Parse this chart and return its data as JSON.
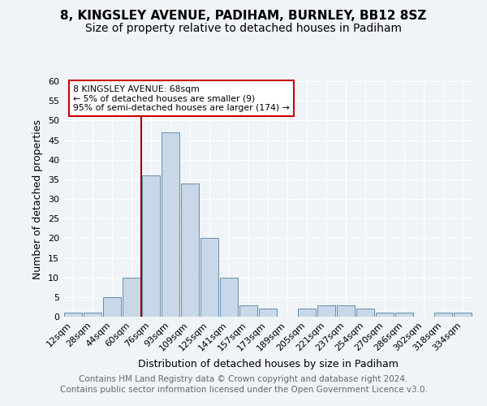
{
  "title": "8, KINGSLEY AVENUE, PADIHAM, BURNLEY, BB12 8SZ",
  "subtitle": "Size of property relative to detached houses in Padiham",
  "xlabel": "Distribution of detached houses by size in Padiham",
  "ylabel": "Number of detached properties",
  "bin_labels": [
    "12sqm",
    "28sqm",
    "44sqm",
    "60sqm",
    "76sqm",
    "93sqm",
    "109sqm",
    "125sqm",
    "141sqm",
    "157sqm",
    "173sqm",
    "189sqm",
    "205sqm",
    "221sqm",
    "237sqm",
    "254sqm",
    "270sqm",
    "286sqm",
    "302sqm",
    "318sqm",
    "334sqm"
  ],
  "bar_heights": [
    1,
    1,
    5,
    10,
    36,
    47,
    34,
    20,
    10,
    3,
    2,
    0,
    2,
    3,
    3,
    2,
    1,
    1,
    0,
    1,
    1
  ],
  "bar_color": "#c8d8e8",
  "bar_edgecolor": "#5580a0",
  "vline_x": 3.5,
  "vline_color": "#990000",
  "annotation_text": "8 KINGSLEY AVENUE: 68sqm\n← 5% of detached houses are smaller (9)\n95% of semi-detached houses are larger (174) →",
  "annotation_box_color": "white",
  "annotation_box_edgecolor": "#cc0000",
  "ylim": [
    0,
    60
  ],
  "yticks": [
    0,
    5,
    10,
    15,
    20,
    25,
    30,
    35,
    40,
    45,
    50,
    55,
    60
  ],
  "footnote1": "Contains HM Land Registry data © Crown copyright and database right 2024.",
  "footnote2": "Contains public sector information licensed under the Open Government Licence v3.0.",
  "background_color": "#f0f4f8",
  "grid_color": "white",
  "title_fontsize": 11,
  "subtitle_fontsize": 10,
  "axis_label_fontsize": 9,
  "tick_fontsize": 8,
  "footnote_fontsize": 7.5
}
